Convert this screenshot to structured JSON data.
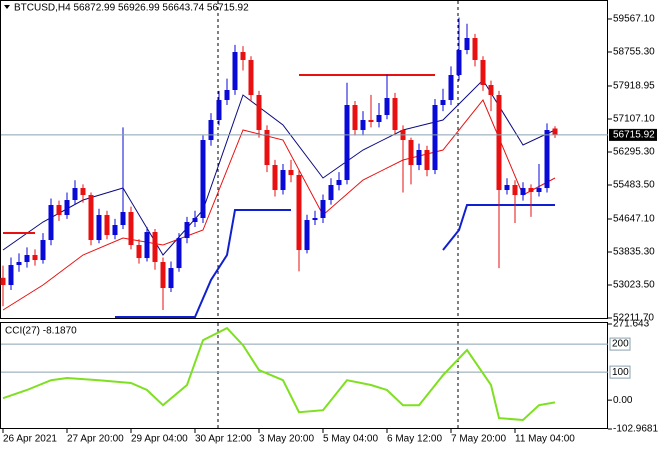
{
  "chart_data": [
    {
      "type": "candlestick",
      "title": "BTCUSD,H4 56872.99 56926.99 56643.74 56715.92",
      "categories": [
        "26 Apr 2021",
        null,
        null,
        null,
        null,
        null,
        null,
        null,
        "27 Apr 20:00",
        null,
        null,
        null,
        null,
        null,
        null,
        null,
        "29 Apr 04:00",
        null,
        null,
        null,
        null,
        null,
        null,
        null,
        "30 Apr 12:00",
        null,
        null,
        null,
        null,
        null,
        null,
        null,
        "3 May 20:00",
        null,
        null,
        null,
        null,
        null,
        null,
        null,
        "5 May 04:00",
        null,
        null,
        null,
        null,
        null,
        null,
        null,
        "6 May 12:00",
        null,
        null,
        null,
        null,
        null,
        null,
        null,
        "7 May 20:00",
        null,
        null,
        null,
        null,
        null,
        null,
        null,
        "11 May 04:00",
        null,
        null,
        null,
        null,
        null
      ],
      "open": [
        53200,
        53023,
        53515,
        53589,
        53761,
        53638,
        54130,
        54991,
        54745,
        55114,
        55409,
        55237,
        54130,
        54745,
        54253,
        54499,
        54819,
        54007,
        53687,
        54327,
        53589,
        52949,
        53441,
        54179,
        54573,
        54671,
        56590,
        57082,
        57574,
        57820,
        58755,
        58558,
        57697,
        56836,
        55975,
        55360,
        55852,
        55729,
        53884,
        54622,
        54671,
        55114,
        55483,
        55606,
        57451,
        56836,
        57082,
        57033,
        57205,
        57623,
        56836,
        56590,
        55975,
        56344,
        55852,
        57451,
        57574,
        58189,
        58804,
        59099,
        58558,
        57943,
        57697,
        55360,
        55483,
        55237,
        55409,
        55311,
        55409,
        56872.99
      ],
      "high": [
        53500,
        53700,
        53800,
        53950,
        53900,
        54300,
        55150,
        55100,
        55300,
        55600,
        55500,
        55300,
        54900,
        54850,
        54650,
        56900,
        54950,
        54150,
        54450,
        54400,
        53700,
        53600,
        54300,
        54700,
        54850,
        56700,
        57250,
        57800,
        58100,
        58930,
        58900,
        58650,
        57800,
        56950,
        56100,
        56000,
        56100,
        55850,
        54750,
        54850,
        55250,
        55650,
        55800,
        58000,
        57550,
        57300,
        57700,
        57500,
        58200,
        57750,
        56950,
        56650,
        56500,
        56450,
        57600,
        57850,
        58400,
        59600,
        59450,
        59200,
        58650,
        58050,
        57800,
        55650,
        55600,
        55550,
        55500,
        56000,
        57000,
        56926.99
      ],
      "low": [
        52500,
        52900,
        53350,
        53450,
        53500,
        53550,
        54000,
        54600,
        54650,
        55000,
        55050,
        54000,
        54050,
        54150,
        54150,
        54400,
        53900,
        53550,
        53600,
        53400,
        52410,
        52850,
        53350,
        54050,
        54450,
        54550,
        56450,
        56950,
        57450,
        57700,
        58300,
        57550,
        56650,
        55800,
        55200,
        55250,
        55550,
        53360,
        53800,
        54500,
        54550,
        55000,
        55350,
        55500,
        56700,
        56700,
        56900,
        56900,
        57100,
        56700,
        55300,
        55500,
        55850,
        55700,
        55750,
        57300,
        57450,
        58050,
        58700,
        58400,
        57800,
        57300,
        53440,
        55250,
        54550,
        55100,
        54700,
        55200,
        55300,
        56643.74
      ],
      "close": [
        53023,
        53515,
        53589,
        53761,
        53638,
        54130,
        54991,
        54745,
        55114,
        55409,
        55237,
        54130,
        54745,
        54253,
        54499,
        54819,
        54007,
        53687,
        54327,
        53589,
        52949,
        53441,
        54179,
        54573,
        54671,
        56590,
        57082,
        57574,
        57820,
        58755,
        58558,
        57697,
        56836,
        55975,
        55360,
        55852,
        55729,
        53884,
        54622,
        54671,
        55114,
        55483,
        55606,
        57451,
        56836,
        57082,
        57033,
        57205,
        57623,
        56836,
        56590,
        55975,
        56344,
        55852,
        57451,
        57574,
        58189,
        58804,
        59099,
        58558,
        57943,
        57697,
        55360,
        55483,
        55237,
        55409,
        55311,
        55409,
        56836,
        56715.92
      ],
      "up_color": "#0a0ad8",
      "down_color": "#e81010",
      "series": [
        {
          "color": "#0a0a80",
          "x": [
            0,
            5,
            10,
            15,
            20,
            25,
            30,
            35,
            40,
            45,
            50,
            55,
            60,
            65,
            69
          ],
          "values": [
            53884,
            54573,
            55114,
            55409,
            53761,
            54868,
            57697,
            56959,
            55655,
            56344,
            56836,
            57082,
            58066,
            56467,
            56836
          ]
        },
        {
          "color": "#e81010",
          "x": [
            0,
            5,
            10,
            15,
            20,
            25,
            30,
            35,
            40,
            45,
            50,
            55,
            60,
            65,
            69
          ],
          "values": [
            52408,
            53023,
            53761,
            54179,
            54007,
            54376,
            56836,
            56590,
            54745,
            55606,
            56098,
            56344,
            57574,
            55237,
            55655
          ]
        },
        {
          "color": "#1020d0",
          "width": 2,
          "x": [
            14,
            24,
            26,
            28,
            29,
            36,
            45,
            55,
            57,
            58,
            69
          ],
          "values": [
            52236,
            52236,
            53146,
            53761,
            54868,
            54868,
            null,
            53884,
            54376,
            54991,
            54991
          ]
        },
        {
          "color": "#e81010",
          "width": 2,
          "x": [
            0,
            4,
            20,
            37,
            54
          ],
          "values": [
            54302,
            54302,
            null,
            58189,
            58189
          ]
        }
      ],
      "ylim": [
        52211.7,
        60034
      ],
      "yticks": [
        {
          "value": 59567.1,
          "label": "59567.10"
        },
        {
          "value": 58755.3,
          "label": "58755.30"
        },
        {
          "value": 57918.95,
          "label": "57918.95"
        },
        {
          "value": 57107.1,
          "label": "57107.10"
        },
        {
          "value": 56295.3,
          "label": "56295.30"
        },
        {
          "value": 55483.5,
          "label": "55483.50"
        },
        {
          "value": 54647.1,
          "label": "54647.10"
        },
        {
          "value": 53835.3,
          "label": "53835.30"
        },
        {
          "value": 53023.5,
          "label": "53023.50"
        },
        {
          "value": 52211.7,
          "label": "52211.70"
        }
      ]
    },
    {
      "type": "line",
      "title": "CCI(27) -8.1870",
      "x": [
        0,
        3,
        6,
        8,
        12,
        16,
        18,
        20,
        23,
        25,
        28,
        30,
        32,
        35,
        37,
        40,
        43,
        46,
        48,
        50,
        52,
        55,
        58,
        61,
        62,
        65,
        67,
        69
      ],
      "values": [
        7,
        36,
        71,
        79,
        71,
        61,
        36,
        -18,
        54,
        214,
        257,
        196,
        107,
        71,
        -43,
        -36,
        71,
        54,
        36,
        -18,
        -18,
        89,
        179,
        54,
        -64,
        -71,
        -18,
        -8.187
      ],
      "color": "#7ee020",
      "levels": [
        200,
        100
      ],
      "ylim": [
        -102.9681,
        271.643
      ],
      "yticks": [
        271.643,
        {
          "value": 0,
          "label": "0.00"
        },
        -102.9681
      ]
    }
  ]
}
